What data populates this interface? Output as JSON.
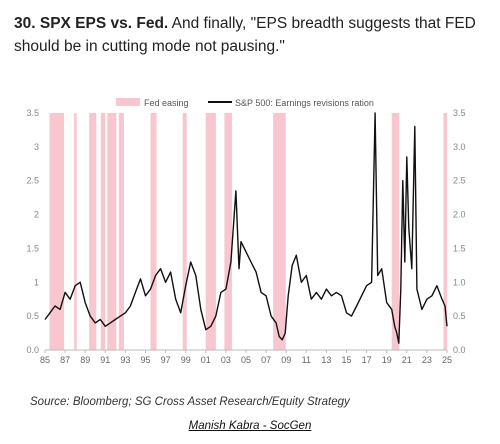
{
  "heading": {
    "number": "30. SPX EPS vs. Fed.",
    "text": " And finally, \"EPS breadth suggests that FED should be in cutting mode not pausing.\""
  },
  "source": "Source: Bloomberg; SG Cross Asset Research/Equity Strategy",
  "credit": "Manish Kabra - SocGen",
  "colors": {
    "easing": "#f7c6cf",
    "line": "#111111",
    "axis_text": "#888888"
  },
  "chart_data": {
    "type": "line",
    "legend": {
      "placement": "top-center",
      "easing_label": "Fed easing",
      "line_label": "S&P 500: Earnings revisions ration"
    },
    "xlim": [
      1985,
      2025
    ],
    "ylim": [
      0,
      3.5
    ],
    "x_ticks": [
      1985,
      1987,
      1989,
      1991,
      1993,
      1995,
      1997,
      1999,
      2001,
      2003,
      2005,
      2007,
      2009,
      2011,
      2013,
      2015,
      2017,
      2019,
      2021,
      2023,
      2025
    ],
    "x_tick_labels": [
      "85",
      "87",
      "89",
      "91",
      "93",
      "95",
      "97",
      "99",
      "01",
      "03",
      "05",
      "07",
      "09",
      "11",
      "13",
      "15",
      "17",
      "19",
      "21",
      "23",
      "25"
    ],
    "y_ticks": [
      0,
      0.5,
      1,
      1.5,
      2,
      2.5,
      3,
      3.5
    ],
    "y_tick_labels": [
      "0.0",
      "0.5",
      "1",
      "1.5",
      "2",
      "2.5",
      "3",
      "3.5"
    ],
    "y2_tick_labels": [
      "0.0",
      "0.5",
      "1.0",
      "1.5",
      "2.0",
      "2.5",
      "3.0",
      "3.5"
    ],
    "easing_periods": [
      [
        1985.45,
        1986.9
      ],
      [
        1987.9,
        1988.15
      ],
      [
        1989.4,
        1990.1
      ],
      [
        1990.55,
        1991.0
      ],
      [
        1991.2,
        1992.1
      ],
      [
        1992.35,
        1992.85
      ],
      [
        1995.5,
        1996.1
      ],
      [
        1998.7,
        1999.1
      ],
      [
        2001.0,
        2002.0
      ],
      [
        2002.85,
        2003.6
      ],
      [
        2007.7,
        2008.95
      ],
      [
        2019.5,
        2020.25
      ],
      [
        2024.65,
        2025.0
      ]
    ],
    "series": [
      {
        "x": [
          1985.0,
          1985.5,
          1986.0,
          1986.5,
          1987.0,
          1987.5,
          1988.0,
          1988.5,
          1989.0,
          1989.5,
          1990.0,
          1990.5,
          1991.0,
          1991.5,
          1992.0,
          1992.5,
          1993.0,
          1993.5,
          1994.0,
          1994.5,
          1995.0,
          1995.5,
          1996.0,
          1996.5,
          1997.0,
          1997.5,
          1998.0,
          1998.5,
          1999.0,
          1999.5,
          2000.0,
          2000.5,
          2001.0,
          2001.5,
          2002.0,
          2002.5,
          2003.0,
          2003.5,
          2004.0,
          2004.3,
          2004.5,
          2005.0,
          2005.5,
          2006.0,
          2006.5,
          2007.0,
          2007.5,
          2008.0,
          2008.3,
          2008.6,
          2008.9,
          2009.2,
          2009.6,
          2010.0,
          2010.5,
          2011.0,
          2011.5,
          2012.0,
          2012.5,
          2013.0,
          2013.5,
          2014.0,
          2014.5,
          2015.0,
          2015.5,
          2016.0,
          2016.5,
          2017.0,
          2017.5,
          2017.85,
          2018.1,
          2018.5,
          2019.0,
          2019.5,
          2019.8,
          2020.0,
          2020.2,
          2020.4,
          2020.6,
          2020.8,
          2021.0,
          2021.2,
          2021.5,
          2021.8,
          2022.0,
          2022.5,
          2023.0,
          2023.5,
          2024.0,
          2024.5,
          2024.8,
          2025.0
        ],
        "y": [
          0.45,
          0.55,
          0.65,
          0.6,
          0.85,
          0.75,
          0.95,
          1.0,
          0.7,
          0.5,
          0.4,
          0.45,
          0.35,
          0.4,
          0.45,
          0.5,
          0.55,
          0.65,
          0.85,
          1.05,
          0.8,
          0.9,
          1.1,
          1.2,
          1.0,
          1.15,
          0.75,
          0.55,
          0.95,
          1.3,
          1.1,
          0.6,
          0.3,
          0.35,
          0.5,
          0.85,
          0.9,
          1.3,
          2.35,
          1.2,
          1.6,
          1.45,
          1.3,
          1.15,
          0.85,
          0.8,
          0.5,
          0.4,
          0.2,
          0.15,
          0.25,
          0.8,
          1.25,
          1.4,
          1.0,
          1.1,
          0.75,
          0.85,
          0.75,
          0.9,
          0.8,
          0.85,
          0.8,
          0.55,
          0.5,
          0.65,
          0.8,
          0.95,
          1.0,
          3.5,
          1.1,
          1.2,
          0.7,
          0.6,
          0.35,
          0.25,
          0.1,
          0.9,
          2.5,
          1.3,
          2.85,
          1.8,
          1.2,
          3.3,
          0.9,
          0.6,
          0.75,
          0.8,
          0.95,
          0.75,
          0.65,
          0.35
        ]
      }
    ]
  }
}
